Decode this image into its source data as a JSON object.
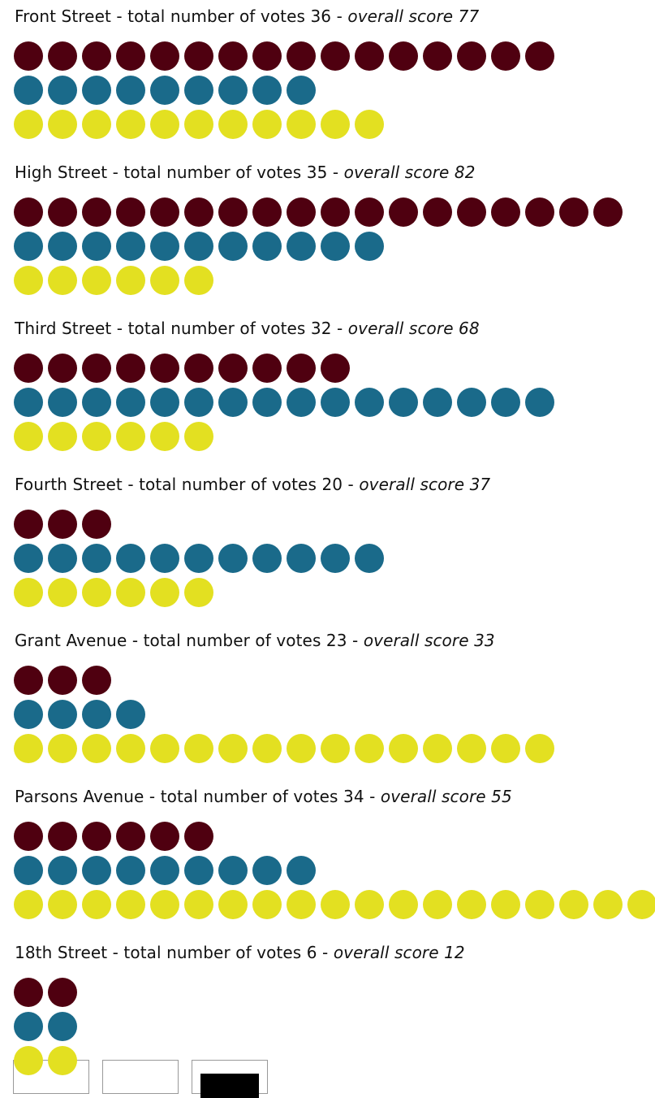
{
  "colors": [
    "#4f0010",
    "#1a6a8a",
    "#e3e021"
  ],
  "streets": [
    {
      "heading": "Front Street - total number of votes 36 - ",
      "score": "overall score 77",
      "counts": [
        16,
        9,
        11
      ]
    },
    {
      "heading": "High Street - total number of votes 35 - ",
      "score": "overall score 82",
      "counts": [
        18,
        11,
        6
      ]
    },
    {
      "heading": "Third Street - total number of votes 32 - ",
      "score": "overall score 68",
      "counts": [
        10,
        16,
        6
      ]
    },
    {
      "heading": "Fourth Street - total number of votes 20 - ",
      "score": "overall score 37",
      "counts": [
        3,
        11,
        6
      ]
    },
    {
      "heading": "Grant Avenue - total number of votes 23 - ",
      "score": "overall score 33",
      "counts": [
        3,
        4,
        16
      ]
    },
    {
      "heading": "Parsons Avenue - total number of votes 34 - ",
      "score": "overall score 55",
      "counts": [
        6,
        9,
        19
      ]
    },
    {
      "heading": "18th Street - total number of votes 6 - ",
      "score": "overall score 12",
      "counts": [
        2,
        2,
        2
      ]
    }
  ]
}
